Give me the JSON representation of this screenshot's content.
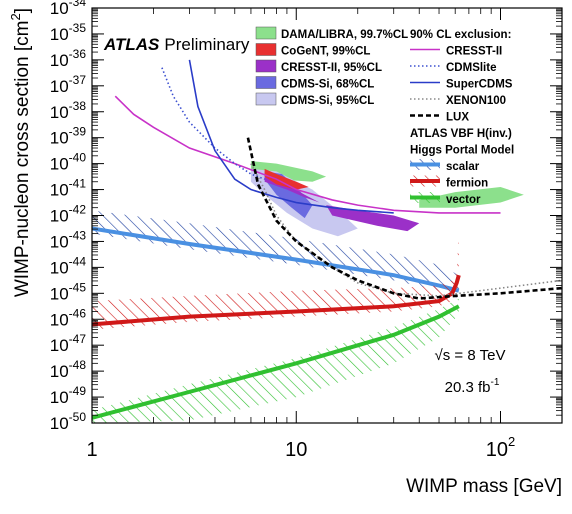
{
  "chart_data": {
    "type": "line",
    "xlabel": "WIMP mass [GeV]",
    "ylabel_main": "WIMP-nucleon cross section [cm",
    "ylabel_sup": "2",
    "ylabel_tail": "]",
    "x_scale": "log",
    "y_scale": "log",
    "xlim": [
      1,
      200
    ],
    "ylim": [
      1e-50,
      1e-34
    ],
    "x_tick_labels": [
      {
        "value": 1,
        "base": "1",
        "exp": ""
      },
      {
        "value": 10,
        "base": "10",
        "exp": ""
      },
      {
        "value": 100,
        "base": "10",
        "exp": "2"
      }
    ],
    "y_tick_labels": [
      {
        "value": -34,
        "base": "10",
        "exp": "-34"
      },
      {
        "value": -35,
        "base": "10",
        "exp": "-35"
      },
      {
        "value": -36,
        "base": "10",
        "exp": "-36"
      },
      {
        "value": -37,
        "base": "10",
        "exp": "-37"
      },
      {
        "value": -38,
        "base": "10",
        "exp": "-38"
      },
      {
        "value": -39,
        "base": "10",
        "exp": "-39"
      },
      {
        "value": -40,
        "base": "10",
        "exp": "-40"
      },
      {
        "value": -41,
        "base": "10",
        "exp": "-41"
      },
      {
        "value": -42,
        "base": "10",
        "exp": "-42"
      },
      {
        "value": -43,
        "base": "10",
        "exp": "-43"
      },
      {
        "value": -44,
        "base": "10",
        "exp": "-44"
      },
      {
        "value": -45,
        "base": "10",
        "exp": "-45"
      },
      {
        "value": -46,
        "base": "10",
        "exp": "-46"
      },
      {
        "value": -47,
        "base": "10",
        "exp": "-47"
      },
      {
        "value": -48,
        "base": "10",
        "exp": "-48"
      },
      {
        "value": -49,
        "base": "10",
        "exp": "-49"
      },
      {
        "value": -50,
        "base": "10",
        "exp": "-50"
      }
    ],
    "annotations": {
      "atlas": "ATLAS",
      "preliminary": "Preliminary",
      "sqrts_root": "√s",
      "sqrts_rest": " = 8 TeV",
      "lumi": "20.3 fb",
      "lumi_exp": "-1"
    },
    "legend_regions": [
      {
        "name": "DAMA/LIBRA, 99.7%CL",
        "color": "#8ce08c"
      },
      {
        "name": "CoGeNT, 99%CL",
        "color": "#e83030"
      },
      {
        "name": "CRESST-II, 95%CL",
        "color": "#9b30c8"
      },
      {
        "name": "CDMS-Si, 68%CL",
        "color": "#6a6ae0"
      },
      {
        "name": "CDMS-Si, 95%CL",
        "color": "#c8c8f0"
      }
    ],
    "legend_exclusion_title": "90% CL exclusion:",
    "legend_exclusions": [
      {
        "name": "CRESST-II",
        "color": "#c832c8",
        "style": "solid"
      },
      {
        "name": "CDMSlite",
        "color": "#3c50d0",
        "style": "dotted"
      },
      {
        "name": "SuperCDMS",
        "color": "#2a3cc8",
        "style": "solid"
      },
      {
        "name": "XENON100",
        "color": "#888888",
        "style": "dotted"
      },
      {
        "name": "LUX",
        "color": "#000000",
        "style": "dashed"
      }
    ],
    "legend_atlas_title_1": "ATLAS VBF H(inv.)",
    "legend_atlas_title_2": "Higgs Portal Model",
    "legend_atlas": [
      {
        "name": "scalar",
        "color": "#4a90e2",
        "hatch": "#1c3fa0"
      },
      {
        "name": "fermion",
        "color": "#d01818",
        "hatch": "#d01818"
      },
      {
        "name": "vector",
        "color": "#30c030",
        "hatch": "#30c030"
      }
    ],
    "series": [
      {
        "name": "scalar",
        "color": "#4a90e2",
        "hatch": "#1c3fa0",
        "x": [
          1,
          3,
          10,
          30,
          50,
          62.5
        ],
        "y": [
          -42.5,
          -43.1,
          -43.7,
          -44.3,
          -44.7,
          -44.9
        ],
        "band_upper": [
          -41.8,
          -42.3,
          -42.9,
          -43.5,
          -43.9,
          -44.3
        ],
        "band_lower": [
          -42.7,
          -43.3,
          -43.9,
          -44.5,
          -44.9,
          -45.2
        ]
      },
      {
        "name": "fermion",
        "color": "#d01818",
        "hatch": "#d01818",
        "x": [
          1,
          3,
          10,
          30,
          50,
          58,
          61,
          62.5
        ],
        "y": [
          -46.2,
          -45.9,
          -45.7,
          -45.5,
          -45.3,
          -45.0,
          -44.6,
          -44.3
        ],
        "band_upper": [
          -45.3,
          -45.1,
          -44.9,
          -44.8,
          -44.7,
          -44.5,
          -44.2,
          -42.7
        ],
        "band_lower": [
          -46.4,
          -46.1,
          -45.9,
          -45.7,
          -45.5,
          -45.3,
          -44.9,
          -44.6
        ]
      },
      {
        "name": "vector",
        "color": "#30c030",
        "hatch": "#30c030",
        "x": [
          1,
          3,
          10,
          30,
          50,
          62.5
        ],
        "y": [
          -49.8,
          -48.8,
          -47.7,
          -46.6,
          -45.9,
          -45.5
        ],
        "band_upper": [
          -49.5,
          -48.5,
          -47.5,
          -46.3,
          -45.6,
          -45.2
        ],
        "band_lower": [
          -50.0,
          -49.9,
          -49.0,
          -47.7,
          -46.7,
          -45.8
        ]
      },
      {
        "name": "CRESST-II",
        "color": "#c832c8",
        "style": "solid",
        "x": [
          1.3,
          1.6,
          2,
          3,
          5,
          8,
          10,
          15,
          20,
          30,
          50,
          100
        ],
        "y": [
          -37.4,
          -38.1,
          -38.6,
          -39.4,
          -40.0,
          -40.6,
          -41.0,
          -41.4,
          -41.6,
          -41.8,
          -41.9,
          -41.9
        ]
      },
      {
        "name": "CDMSlite",
        "color": "#3c50d0",
        "style": "dotted",
        "x": [
          2.2,
          2.5,
          3,
          4,
          5,
          6,
          7
        ],
        "y": [
          -36.3,
          -37.4,
          -38.4,
          -39.4,
          -40.0,
          -40.4,
          -40.6
        ]
      },
      {
        "name": "SuperCDMS",
        "color": "#2a3cc8",
        "style": "solid",
        "x": [
          3.0,
          3.3,
          4,
          5,
          6,
          8,
          10,
          15,
          20,
          30
        ],
        "y": [
          -36.0,
          -37.8,
          -39.5,
          -40.6,
          -41.0,
          -41.3,
          -41.5,
          -41.7,
          -41.8,
          -41.9
        ]
      },
      {
        "name": "XENON100",
        "color": "#888888",
        "style": "dotted",
        "x": [
          6,
          7,
          8,
          10,
          15,
          20,
          30,
          50,
          100,
          200
        ],
        "y": [
          -40.0,
          -41.0,
          -42.0,
          -43.0,
          -44.0,
          -44.6,
          -45.0,
          -45.1,
          -44.8,
          -44.5
        ]
      },
      {
        "name": "LUX",
        "color": "#000000",
        "style": "dashed",
        "x": [
          5.8,
          6.5,
          8,
          10,
          15,
          20,
          30,
          40,
          60,
          100,
          200
        ],
        "y": [
          -39.0,
          -40.8,
          -42.2,
          -43.0,
          -44.0,
          -44.5,
          -45.0,
          -45.2,
          -45.1,
          -45.0,
          -44.8
        ]
      }
    ],
    "regions": [
      {
        "name": "DAMA/LIBRA",
        "color": "#8ce08c",
        "x": [
          6,
          8,
          12,
          14,
          12,
          8,
          6
        ],
        "y": [
          -39.9,
          -40.0,
          -40.3,
          -40.5,
          -40.7,
          -40.6,
          -40.3
        ]
      },
      {
        "name": "DAMA/LIBRA",
        "color": "#8ce08c",
        "x": [
          40,
          60,
          100,
          130,
          100,
          60,
          40
        ],
        "y": [
          -41.4,
          -41.1,
          -40.9,
          -41.2,
          -41.5,
          -41.7,
          -41.7
        ]
      },
      {
        "name": "CDMS-Si 95%CL",
        "color": "#c8c8f0",
        "x": [
          6,
          7,
          9,
          12,
          16,
          20,
          16,
          12,
          8,
          6
        ],
        "y": [
          -40.7,
          -41.2,
          -41.9,
          -42.5,
          -42.8,
          -42.5,
          -41.8,
          -41.0,
          -40.3,
          -40.2
        ]
      },
      {
        "name": "CDMS-Si 68%CL",
        "color": "#6a6ae0",
        "x": [
          7,
          8,
          9.5,
          11,
          12,
          10,
          8.5,
          7
        ],
        "y": [
          -40.6,
          -41.2,
          -41.7,
          -42.1,
          -41.6,
          -40.9,
          -40.4,
          -40.3
        ]
      },
      {
        "name": "CRESST-II",
        "color": "#9b30c8",
        "x": [
          7,
          9,
          11,
          13,
          11,
          9,
          7
        ],
        "y": [
          -40.7,
          -41.0,
          -41.3,
          -41.5,
          -41.2,
          -40.8,
          -40.5
        ]
      },
      {
        "name": "CRESST-II",
        "color": "#9b30c8",
        "x": [
          14,
          20,
          30,
          40,
          35,
          25,
          15
        ],
        "y": [
          -41.6,
          -41.8,
          -42.0,
          -42.3,
          -42.6,
          -42.4,
          -42.0
        ]
      },
      {
        "name": "CoGeNT",
        "color": "#e83030",
        "x": [
          7,
          8,
          10,
          11.5,
          10,
          8,
          7
        ],
        "y": [
          -40.2,
          -40.4,
          -40.7,
          -40.9,
          -41.0,
          -40.8,
          -40.5
        ]
      }
    ]
  }
}
